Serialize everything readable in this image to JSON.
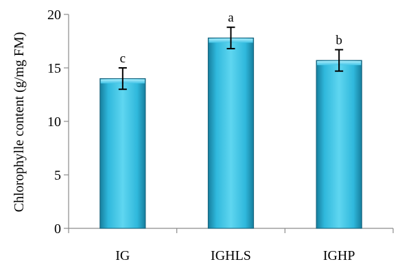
{
  "chart_data": {
    "type": "bar",
    "title": "",
    "xlabel": "",
    "ylabel": "Chlorophylle content (g/mg FM)",
    "categories": [
      "IG",
      "IGHLS",
      "IGHP"
    ],
    "values": [
      14.0,
      17.8,
      15.7
    ],
    "errors": [
      1.0,
      1.0,
      1.0
    ],
    "significance_labels": [
      "c",
      "a",
      "b"
    ],
    "ylim": [
      0,
      20
    ],
    "yticks": [
      0,
      5,
      10,
      15,
      20
    ],
    "grid": false,
    "legend": "none",
    "colors": {
      "bar_fill_light": "#5fd6f0",
      "bar_fill_mid": "#2fb8dc",
      "bar_fill_dark": "#167e9d",
      "bar_edge": "#145f78",
      "axis": "#8a8a8a",
      "text": "#000000"
    }
  }
}
